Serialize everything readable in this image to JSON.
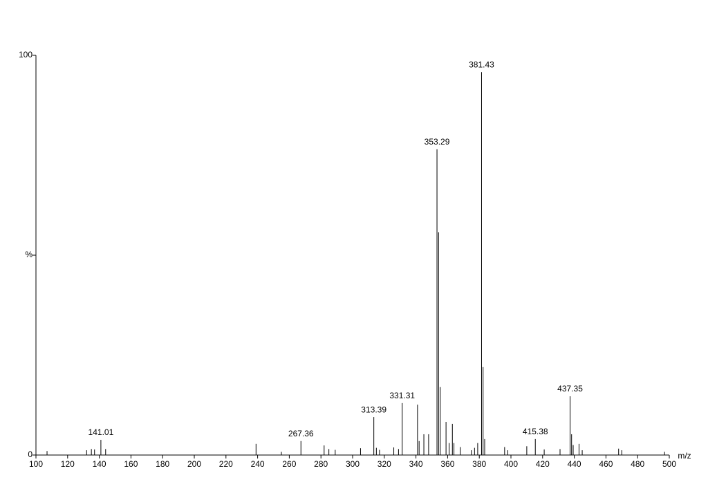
{
  "chart_data": {
    "type": "stem",
    "x_label": "m/z",
    "labeled_peaks": {
      "x": [
        141.01,
        267.36,
        313.39,
        331.31,
        353.29,
        381.43,
        415.38,
        437.35
      ],
      "values": [
        3.8,
        3.5,
        9.5,
        13,
        76.5,
        95.8,
        4,
        14.7
      ]
    },
    "peaks": {
      "x": [
        107,
        132,
        135,
        137,
        144,
        239,
        255,
        282,
        285,
        289,
        305,
        315,
        317,
        326,
        329,
        341,
        342,
        345,
        348,
        354.3,
        355.3,
        359,
        361,
        363,
        364,
        368,
        375,
        377,
        379,
        382.4,
        383.4,
        396,
        398,
        410,
        421,
        431,
        438.3,
        439.3,
        443,
        445,
        468,
        470,
        497
      ],
      "values": [
        1,
        1.2,
        1.5,
        1.4,
        1.5,
        2.8,
        0.8,
        2.4,
        1.5,
        1.3,
        1.7,
        1.8,
        1.3,
        1.9,
        1.5,
        12.6,
        3.5,
        5.2,
        5.2,
        55.7,
        17,
        8.3,
        3,
        7.8,
        3,
        2,
        1.2,
        1.8,
        3,
        22,
        4,
        2,
        1.2,
        2.2,
        1.4,
        1.5,
        5.2,
        2.5,
        2.8,
        1.2,
        1.6,
        1.2,
        0.8
      ]
    },
    "color": "#000000",
    "xlim": [
      100,
      500
    ],
    "xticks": [
      100,
      120,
      140,
      160,
      180,
      200,
      220,
      240,
      260,
      280,
      300,
      320,
      340,
      360,
      380,
      400,
      420,
      440,
      460,
      480,
      500
    ],
    "ylim": [
      0,
      100
    ],
    "yticks": [
      0,
      {
        "value": 50,
        "label": "%"
      },
      100
    ]
  }
}
